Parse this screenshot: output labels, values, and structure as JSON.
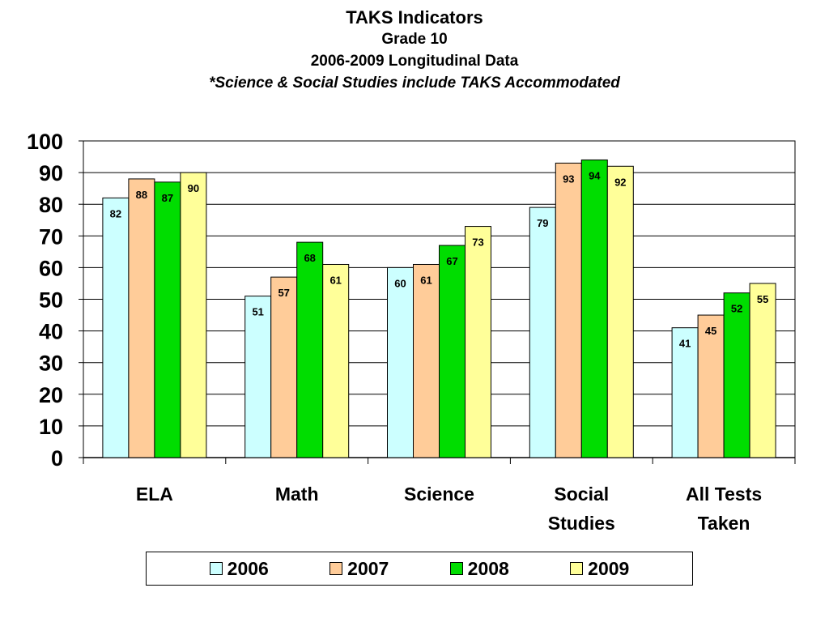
{
  "titles": {
    "title": "TAKS Indicators",
    "subtitle1": "Grade 10",
    "subtitle2": "2006-2009 Longitudinal Data",
    "subtitle3": "*Science & Social Studies include TAKS Accommodated"
  },
  "chart_data": {
    "type": "bar",
    "title": "TAKS Indicators",
    "categories": [
      [
        "ELA"
      ],
      [
        "Math"
      ],
      [
        "Science"
      ],
      [
        "Social",
        "Studies"
      ],
      [
        "All Tests",
        "Taken"
      ]
    ],
    "series": [
      {
        "name": "2006",
        "color": "#ccffff",
        "values": [
          82,
          51,
          60,
          79,
          41
        ]
      },
      {
        "name": "2007",
        "color": "#ffcc99",
        "values": [
          88,
          57,
          61,
          93,
          45
        ]
      },
      {
        "name": "2008",
        "color": "#00dd00",
        "values": [
          87,
          68,
          67,
          94,
          52
        ]
      },
      {
        "name": "2009",
        "color": "#ffff99",
        "values": [
          90,
          61,
          73,
          92,
          55
        ]
      }
    ],
    "ylim": [
      0,
      100
    ],
    "yticks": [
      0,
      10,
      20,
      30,
      40,
      50,
      60,
      70,
      80,
      90,
      100
    ],
    "grid": true,
    "legend_position": "bottom",
    "xlabel": "",
    "ylabel": ""
  }
}
